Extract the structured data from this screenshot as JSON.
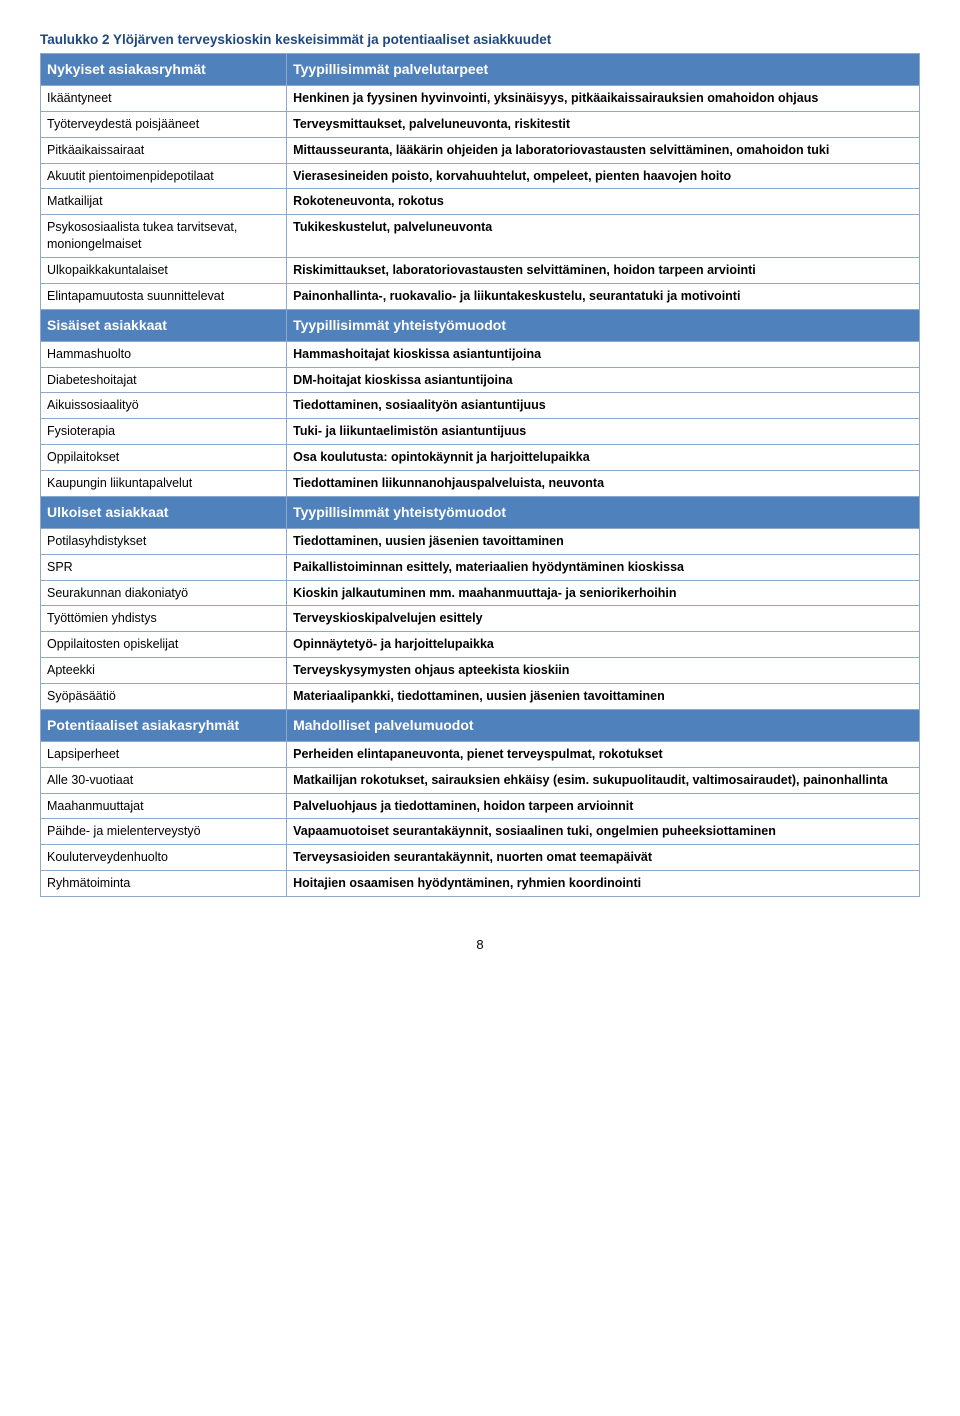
{
  "caption": "Taulukko 2 Ylöjärven terveyskioskin keskeisimmät ja potentiaaliset asiakkuudet",
  "sections": [
    {
      "head_left": "Nykyiset asiakasryhmät",
      "head_right": "Tyypillisimmät palvelutarpeet",
      "rows": [
        {
          "l": "Ikääntyneet",
          "r": "Henkinen ja fyysinen hyvinvointi, yksinäisyys, pitkäaikaissairauksien omahoidon ohjaus"
        },
        {
          "l": "Työterveydestä poisjääneet",
          "r": "Terveysmittaukset, palveluneuvonta, riskitestit"
        },
        {
          "l": "Pitkäaikaissairaat",
          "r": "Mittausseuranta, lääkärin ohjeiden ja laboratoriovastausten selvittäminen, omahoidon tuki"
        },
        {
          "l": "Akuutit pientoimenpidepotilaat",
          "r": "Vierasesineiden poisto, korvahuuhtelut, ompeleet, pienten haavojen hoito"
        },
        {
          "l": "Matkailijat",
          "r": "Rokoteneuvonta, rokotus"
        },
        {
          "l": "Psykososiaalista tukea tarvitsevat, moniongelmaiset",
          "r": "Tukikeskustelut, palveluneuvonta"
        },
        {
          "l": "Ulkopaikkakuntalaiset",
          "r": "Riskimittaukset, laboratoriovastausten selvittäminen, hoidon tarpeen arviointi"
        },
        {
          "l": "Elintapamuutosta suunnittelevat",
          "r": "Painonhallinta-, ruokavalio- ja liikuntakeskustelu, seurantatuki ja motivointi"
        }
      ]
    },
    {
      "head_left": "Sisäiset asiakkaat",
      "head_right": "Tyypillisimmät yhteistyömuodot",
      "rows": [
        {
          "l": "Hammashuolto",
          "r": "Hammashoitajat kioskissa asiantuntijoina"
        },
        {
          "l": "Diabeteshoitajat",
          "r": "DM-hoitajat kioskissa asiantuntijoina"
        },
        {
          "l": "Aikuissosiaalityö",
          "r": "Tiedottaminen, sosiaalityön asiantuntijuus"
        },
        {
          "l": "Fysioterapia",
          "r": "Tuki- ja liikuntaelimistön asiantuntijuus"
        },
        {
          "l": "Oppilaitokset",
          "r": "Osa koulutusta: opintokäynnit ja harjoittelupaikka"
        },
        {
          "l": "Kaupungin liikuntapalvelut",
          "r": "Tiedottaminen liikunnanohjauspalveluista, neuvonta"
        }
      ]
    },
    {
      "head_left": "Ulkoiset asiakkaat",
      "head_right": "Tyypillisimmät yhteistyömuodot",
      "rows": [
        {
          "l": "Potilasyhdistykset",
          "r": "Tiedottaminen, uusien jäsenien tavoittaminen"
        },
        {
          "l": "SPR",
          "r": "Paikallistoiminnan esittely, materiaalien hyödyntäminen kioskissa"
        },
        {
          "l": "Seurakunnan diakoniatyö",
          "r": "Kioskin jalkautuminen mm. maahanmuuttaja- ja seniorikerhoihin"
        },
        {
          "l": "Työttömien yhdistys",
          "r": "Terveyskioskipalvelujen esittely"
        },
        {
          "l": "Oppilaitosten opiskelijat",
          "r": "Opinnäytetyö- ja harjoittelupaikka"
        },
        {
          "l": "Apteekki",
          "r": "Terveyskysymysten ohjaus apteekista kioskiin"
        },
        {
          "l": "Syöpäsäätiö",
          "r": "Materiaalipankki, tiedottaminen, uusien jäsenien tavoittaminen"
        }
      ]
    },
    {
      "head_left": "Potentiaaliset asiakasryhmät",
      "head_right": "Mahdolliset palvelumuodot",
      "rows": [
        {
          "l": "Lapsiperheet",
          "r": "Perheiden elintapaneuvonta, pienet terveyspulmat, rokotukset"
        },
        {
          "l": "Alle 30-vuotiaat",
          "r": "Matkailijan rokotukset, sairauksien ehkäisy (esim. sukupuolitaudit, valtimosairaudet), painonhallinta"
        },
        {
          "l": "Maahanmuuttajat",
          "r": "Palveluohjaus ja tiedottaminen, hoidon tarpeen arvioinnit"
        },
        {
          "l": "Päihde- ja mielenterveystyö",
          "r": "Vapaamuotoiset seurantakäynnit, sosiaalinen tuki, ongelmien puheeksiottaminen"
        },
        {
          "l": "Kouluterveydenhuolto",
          "r": "Terveysasioiden seurantakäynnit, nuorten omat teemapäivät"
        },
        {
          "l": "Ryhmätoiminta",
          "r": "Hoitajien osaamisen hyödyntäminen, ryhmien koordinointi"
        }
      ]
    }
  ],
  "page_number": "8",
  "colors": {
    "header_bg": "#4f81bd",
    "header_fg": "#ffffff",
    "border": "#8ea9c9",
    "caption_color": "#1f497d"
  }
}
